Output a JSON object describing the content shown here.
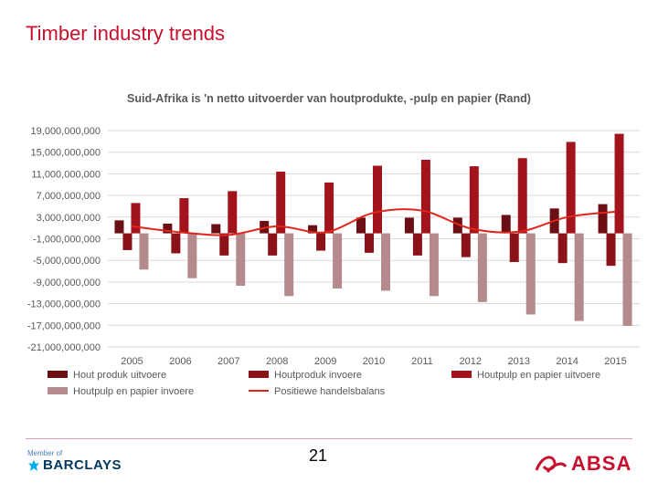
{
  "slide": {
    "title": "Timber industry trends",
    "page_number": "21",
    "barclays_member": "Member of",
    "barclays_name": "BARCLAYS",
    "absa_name": "ABSA"
  },
  "colors": {
    "hout_produk_uitvoere": "#6b0f14",
    "houtproduk_invoere": "#8c1219",
    "houtpulp_uitvoere": "#a3131c",
    "houtpulp_invoere": "#b58a8c",
    "handelsbalans": "#e0251b",
    "brand_red": "#c8102e"
  },
  "chart_data": {
    "type": "bar",
    "title": "Suid-Afrika is 'n netto uitvoerder van houtprodukte, -pulp en papier (Rand)",
    "categories": [
      "2005",
      "2006",
      "2007",
      "2008",
      "2009",
      "2010",
      "2011",
      "2012",
      "2013",
      "2014",
      "2015"
    ],
    "ylim": [
      -21000000000,
      19000000000
    ],
    "yticks": [
      19000000000,
      15000000000,
      11000000000,
      7000000000,
      3000000000,
      -1000000000,
      -5000000000,
      -9000000000,
      -13000000000,
      -17000000000,
      -21000000000
    ],
    "ytick_labels": [
      "19,000,000,000",
      "15,000,000,000",
      "11,000,000,000",
      "7,000,000,000",
      "3,000,000,000",
      "-1,000,000,000",
      "-5,000,000,000",
      "-9,000,000,000",
      "-13,000,000,000",
      "-17,000,000,000",
      "-21,000,000,000"
    ],
    "legend_position": "bottom",
    "series": [
      {
        "name": "Hout produk uitvoere",
        "kind": "bar",
        "color": "#6b0f14",
        "values": [
          2400000000,
          1800000000,
          1700000000,
          2300000000,
          1500000000,
          2900000000,
          2900000000,
          2900000000,
          3400000000,
          4600000000,
          5400000000
        ]
      },
      {
        "name": "Houtproduk invoere",
        "kind": "bar",
        "color": "#8c1219",
        "values": [
          -3100000000,
          -3700000000,
          -4100000000,
          -4100000000,
          -3200000000,
          -3600000000,
          -4100000000,
          -4400000000,
          -5300000000,
          -5500000000,
          -6000000000
        ]
      },
      {
        "name": "Houtpulp en papier uitvoere",
        "kind": "bar",
        "color": "#a3131c",
        "values": [
          5600000000,
          6500000000,
          7800000000,
          11400000000,
          9400000000,
          12500000000,
          13600000000,
          12400000000,
          13900000000,
          16900000000,
          18400000000
        ]
      },
      {
        "name": "Houtpulp en papier invoere",
        "kind": "bar",
        "color": "#b58a8c",
        "values": [
          -6700000000,
          -8300000000,
          -9700000000,
          -11600000000,
          -10200000000,
          -10600000000,
          -11600000000,
          -12700000000,
          -15000000000,
          -16200000000,
          -17100000000
        ]
      },
      {
        "name": "Positiewe handelsbalans",
        "kind": "line",
        "color": "#e0251b",
        "values": [
          1300000000,
          200000000,
          -300000000,
          1300000000,
          200000000,
          3800000000,
          4200000000,
          900000000,
          300000000,
          3000000000,
          4000000000
        ]
      }
    ]
  }
}
